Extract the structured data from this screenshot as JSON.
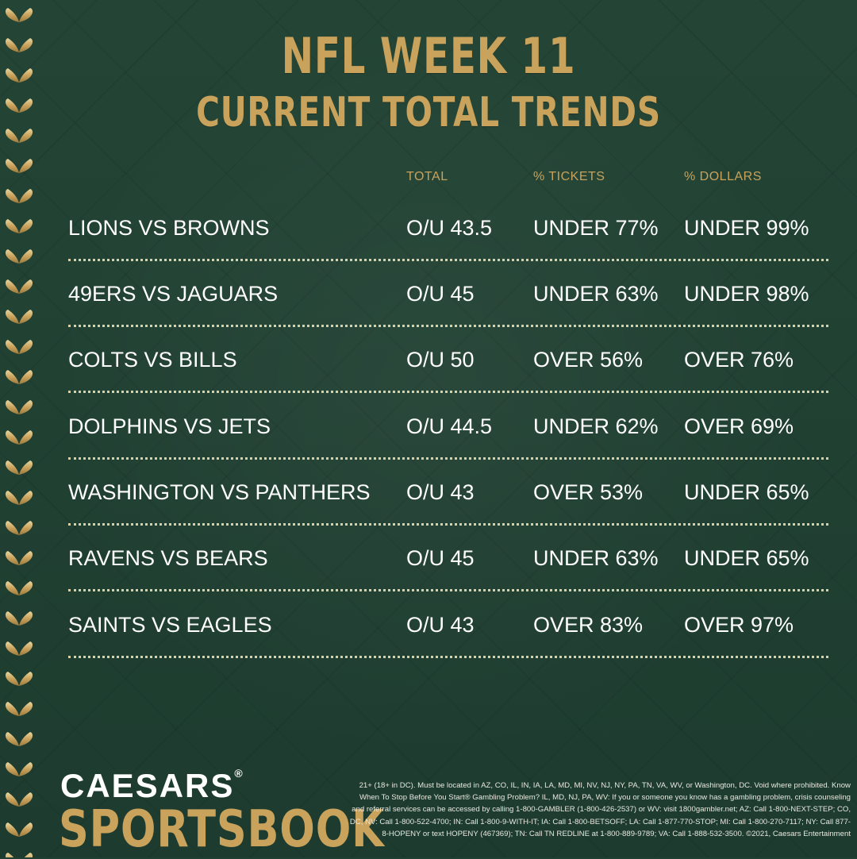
{
  "title": {
    "line1": "NFL WEEK 11",
    "line2": "CURRENT TOTAL TRENDS"
  },
  "columns": {
    "total": "TOTAL",
    "tickets": "% TICKETS",
    "dollars": "% DOLLARS"
  },
  "rows": [
    {
      "match": "LIONS VS BROWNS",
      "total": "O/U 43.5",
      "tickets": "UNDER 77%",
      "dollars": "UNDER 99%"
    },
    {
      "match": "49ERS VS JAGUARS",
      "total": "O/U 45",
      "tickets": "UNDER 63%",
      "dollars": "UNDER 98%"
    },
    {
      "match": "COLTS VS BILLS",
      "total": "O/U 50",
      "tickets": "OVER 56%",
      "dollars": "OVER 76%"
    },
    {
      "match": "DOLPHINS VS JETS",
      "total": "O/U 44.5",
      "tickets": "UNDER 62%",
      "dollars": "OVER 69%"
    },
    {
      "match": "WASHINGTON VS PANTHERS",
      "total": "O/U 43",
      "tickets": "OVER 53%",
      "dollars": "UNDER 65%"
    },
    {
      "match": "RAVENS VS BEARS",
      "total": "O/U 45",
      "tickets": "UNDER 63%",
      "dollars": "UNDER 65%"
    },
    {
      "match": "SAINTS VS EAGLES",
      "total": "O/U 43",
      "tickets": "OVER 83%",
      "dollars": "OVER 97%"
    }
  ],
  "brand": {
    "line1": "CAESARS",
    "mark": "®",
    "line2": "SPORTSBOOK"
  },
  "legal": "21+ (18+ in DC). Must be located in AZ, CO, IL, IN, IA, LA, MD, MI, NV, NJ, NY, PA, TN, VA, WV, or Washington, DC. Void where prohibited. Know When To Stop Before You Start® Gambling Problem? IL, MD, NJ, PA, WV: If you or someone you know has a gambling problem, crisis counseling and referral services can be accessed by calling 1-800-GAMBLER (1-800-426-2537) or WV: visit 1800gambler.net; AZ: Call 1-800-NEXT-STEP; CO, DC, NV: Call 1-800-522-4700; IN: Call 1-800-9-WITH-IT; IA: Call 1-800-BETSOFF; LA: Call 1-877-770-STOP; MI: Call 1-800-270-7117; NY: Call 877-8-HOPENY or text HOPENY (467369); TN: Call TN REDLINE at 1-800-889-9789; VA: Call 1-888-532-3500. ©2021, Caesars Entertainment",
  "colors": {
    "background": "#1f4032",
    "gold": "#c9a25c",
    "text": "#ffffff",
    "separator": "#d9cfa8"
  }
}
